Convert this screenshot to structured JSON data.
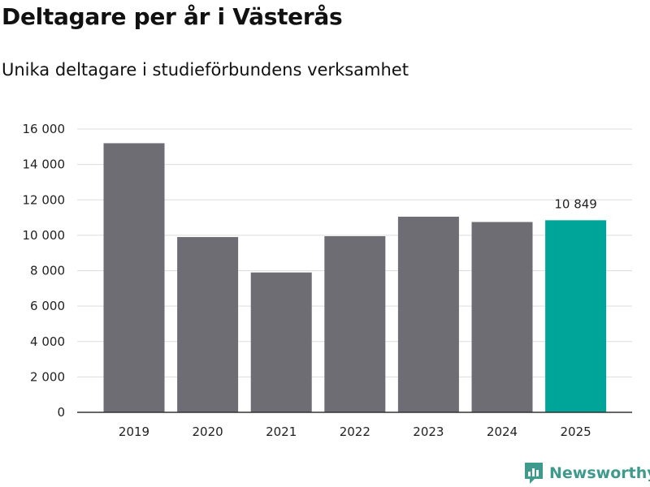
{
  "header": {
    "title": "Deltagare per år i Västerås",
    "subtitle": "Unika deltagare i studieförbundens verksamhet"
  },
  "chart_data": {
    "type": "bar",
    "title": "Deltagare per år i Västerås",
    "subtitle": "Unika deltagare i studieförbundens verksamhet",
    "xlabel": "",
    "ylabel": "",
    "categories": [
      "2019",
      "2020",
      "2021",
      "2022",
      "2023",
      "2024",
      "2025"
    ],
    "values": [
      15200,
      9900,
      7900,
      9950,
      11050,
      10750,
      10849
    ],
    "highlight_index": 6,
    "highlight_label": "10 849",
    "ylim": [
      0,
      16000
    ],
    "yticks": [
      0,
      2000,
      4000,
      6000,
      8000,
      10000,
      12000,
      14000,
      16000
    ],
    "ytick_labels": [
      "0",
      "2 000",
      "4 000",
      "6 000",
      "8 000",
      "10 000",
      "12 000",
      "14 000",
      "16 000"
    ],
    "grid": true,
    "colors": {
      "bar": "#6e6d73",
      "highlight": "#00a59a",
      "grid": "#dddddd",
      "axis": "#333333"
    }
  },
  "branding": {
    "name": "Newsworthy",
    "logo_icon": "newsworthy-logo-icon",
    "color": "#3f9a8e"
  }
}
